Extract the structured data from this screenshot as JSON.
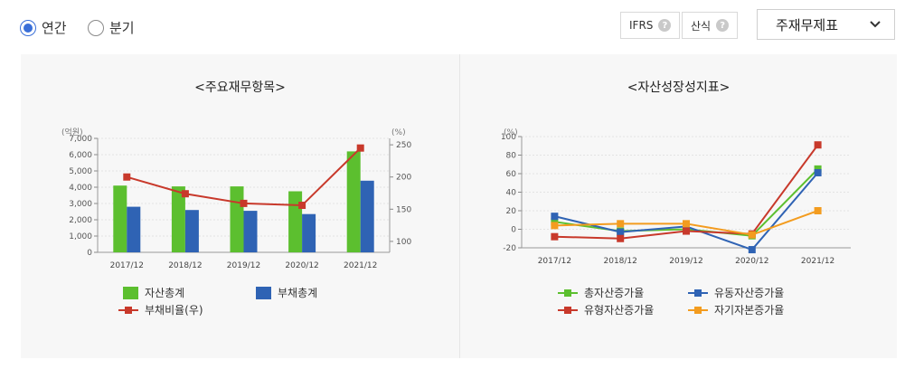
{
  "topbar": {
    "radio_annual": "연간",
    "radio_quarter": "분기",
    "selected": "annual",
    "ifrs_label": "IFRS",
    "formula_label": "산식",
    "help_glyph": "?",
    "select_value": "주재무제표",
    "accent": "#3a6fd8"
  },
  "chart_data": [
    {
      "type": "bar",
      "title": "<주요재무항목>",
      "ylabel": "(억원)",
      "y2label": "(%)",
      "categories": [
        "2017/12",
        "2018/12",
        "2019/12",
        "2020/12",
        "2021/12"
      ],
      "ylim": [
        0,
        7000
      ],
      "yticks": [
        "0",
        "1,000",
        "2,000",
        "3,000",
        "4,000",
        "5,000",
        "6,000",
        "7,000"
      ],
      "y2lim": [
        83,
        260
      ],
      "y2ticks": [
        "100",
        "150",
        "200",
        "250"
      ],
      "series": [
        {
          "name": "자산총계",
          "kind": "bar",
          "axis": "left",
          "color": "#5cbf2f",
          "values": [
            4100,
            4050,
            4050,
            3750,
            6200
          ]
        },
        {
          "name": "부채총계",
          "kind": "bar",
          "axis": "left",
          "color": "#2f63b4",
          "values": [
            2800,
            2600,
            2550,
            2350,
            4400
          ]
        },
        {
          "name": "부채비율(우)",
          "kind": "line",
          "axis": "right",
          "color": "#c8392b",
          "values": [
            200,
            174,
            159,
            156,
            245
          ]
        }
      ],
      "legend_position": "bottom"
    },
    {
      "type": "line",
      "title": "<자산성장성지표>",
      "ylabel": "(%)",
      "categories": [
        "2017/12",
        "2018/12",
        "2019/12",
        "2020/12",
        "2021/12"
      ],
      "ylim": [
        -20,
        100
      ],
      "yticks": [
        "-20",
        "0",
        "20",
        "40",
        "60",
        "80",
        "100"
      ],
      "series": [
        {
          "name": "총자산증가율",
          "color": "#5cbf2f",
          "values": [
            8,
            -2,
            0,
            -7,
            65
          ]
        },
        {
          "name": "유동자산증가율",
          "color": "#2f63b4",
          "values": [
            14,
            -3,
            3,
            -22,
            61
          ]
        },
        {
          "name": "유형자산증가율",
          "color": "#c8392b",
          "values": [
            -8,
            -10,
            -2,
            -5,
            91
          ]
        },
        {
          "name": "자기자본증가율",
          "color": "#f39c1f",
          "values": [
            4,
            6,
            6,
            -6,
            20
          ]
        }
      ],
      "legend_position": "bottom"
    }
  ]
}
